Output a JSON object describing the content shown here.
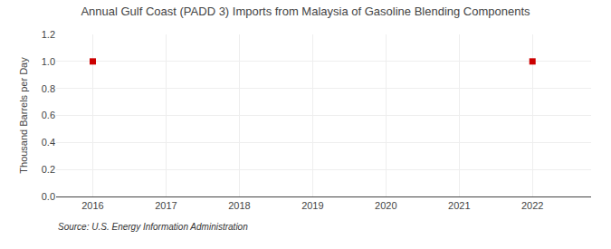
{
  "chart_data": {
    "type": "scatter",
    "title": "Annual Gulf Coast (PADD 3) Imports from Malaysia of Gasoline Blending Components",
    "y_label": "Thousand Barrels per Day",
    "annotations": [
      "Source: U.S. Energy Information Administration"
    ],
    "x": [
      2016,
      2022
    ],
    "values": [
      1.0,
      1.0
    ],
    "color": "#cc0000",
    "marker": "square",
    "xlim": [
      2015.5,
      2022.8
    ],
    "ylim": [
      0.0,
      1.2
    ],
    "xticks": [
      2016,
      2017,
      2018,
      2019,
      2020,
      2021,
      2022
    ],
    "yticks": [
      {
        "value": 0.0,
        "label": "0.0"
      },
      0.2,
      0.4,
      0.6,
      0.8,
      {
        "value": 1.0,
        "label": "1.0"
      },
      1.2
    ],
    "grid": true
  }
}
